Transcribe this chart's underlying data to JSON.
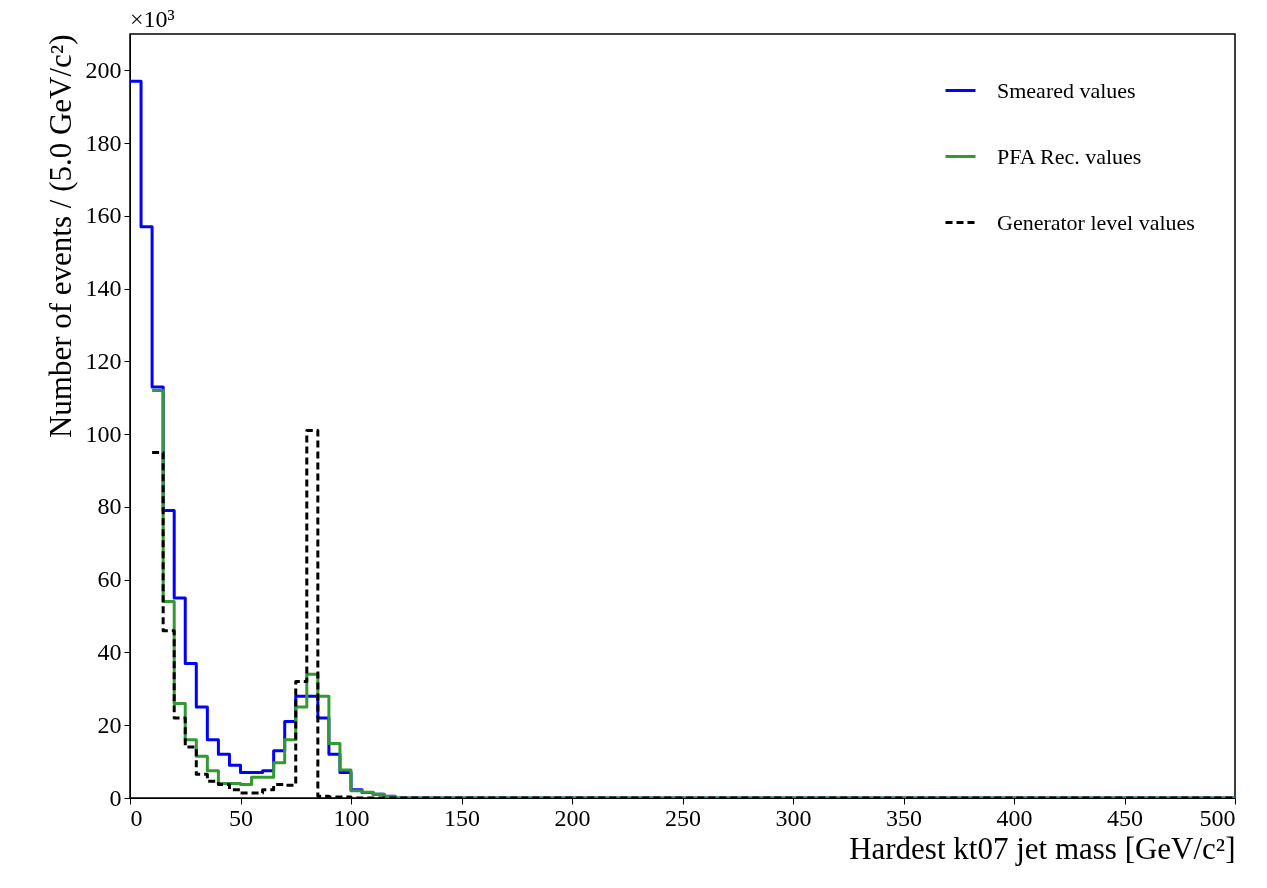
{
  "chart_data": {
    "type": "histogram",
    "xlabel": "Hardest kt07 jet mass [GeV/c²]",
    "ylabel": "Number of events / (5.0 GeV/c²)",
    "annotations": [
      "×10³"
    ],
    "bins": [
      0,
      5,
      10,
      15,
      20,
      25,
      30,
      35,
      40,
      45,
      50,
      55,
      60,
      65,
      70,
      75,
      80,
      85,
      90,
      95,
      100,
      105,
      110,
      115,
      120,
      125,
      130,
      135,
      140,
      145,
      150,
      155,
      160,
      165,
      170,
      175,
      180,
      185,
      190,
      195,
      200,
      205,
      210,
      215,
      220,
      225,
      230,
      235,
      240,
      245,
      250,
      255,
      260,
      265,
      270,
      275,
      280,
      285,
      290,
      295,
      300,
      305,
      310,
      315,
      320,
      325,
      330,
      335,
      340,
      345,
      350,
      355,
      360,
      365,
      370,
      375,
      380,
      385,
      390,
      395,
      400,
      405,
      410,
      415,
      420,
      425,
      430,
      435,
      440,
      445,
      450,
      455,
      460,
      465,
      470,
      475,
      480,
      485,
      490,
      495,
      500
    ],
    "series": [
      {
        "name": "Smeared values",
        "color": "#0000ff",
        "line_style": "solid",
        "values": [
          197,
          157,
          113,
          79,
          55,
          37,
          25,
          16,
          12,
          9,
          7,
          7,
          7.5,
          13,
          21,
          28,
          28,
          22,
          12,
          7,
          2.3,
          1.5,
          1,
          0.5,
          0,
          0,
          0,
          0,
          0,
          0,
          0,
          0,
          0,
          0,
          0,
          0,
          0,
          0,
          0,
          0,
          0,
          0,
          0,
          0,
          0,
          0,
          0,
          0,
          0,
          0,
          0,
          0,
          0,
          0,
          0,
          0,
          0,
          0,
          0,
          0,
          0,
          0,
          0,
          0,
          0,
          0,
          0,
          0,
          0,
          0,
          0,
          0,
          0,
          0,
          0,
          0,
          0,
          0,
          0,
          0,
          0,
          0,
          0,
          0,
          0,
          0,
          0,
          0,
          0,
          0,
          0,
          0,
          0,
          0,
          0,
          0,
          0,
          0,
          0,
          0
        ]
      },
      {
        "name": "PFA Rec. values",
        "color": "#339933",
        "line_style": "solid",
        "bins": [
          10,
          15,
          20,
          25,
          30,
          35,
          40,
          45,
          50,
          55,
          60,
          65,
          70,
          75,
          80,
          85,
          90,
          95,
          100,
          105,
          110,
          115,
          120,
          125,
          130,
          135,
          140,
          145,
          150,
          155,
          160,
          165,
          170,
          175,
          180,
          185,
          190,
          195,
          200,
          205,
          210,
          215,
          220,
          225,
          230,
          235,
          240,
          245,
          250,
          255,
          260,
          265,
          270,
          275,
          280,
          285,
          290,
          295,
          300,
          305,
          310,
          315,
          320,
          325,
          330,
          335,
          340,
          345,
          350,
          355,
          360,
          365,
          370,
          375,
          380,
          385,
          390,
          395,
          400,
          405,
          410,
          415,
          420,
          425,
          430,
          435,
          440,
          445,
          450,
          455,
          460,
          465,
          470,
          475,
          480,
          485,
          490,
          495,
          500
        ],
        "values": [
          112,
          54,
          26,
          16,
          11.5,
          7.5,
          4,
          4,
          3.7,
          5.7,
          5.7,
          9.7,
          16,
          25,
          34,
          28,
          15,
          7.7,
          2,
          1.6,
          1,
          0.4,
          0,
          0,
          0,
          0,
          0,
          0,
          0,
          0,
          0,
          0,
          0,
          0,
          0,
          0,
          0,
          0,
          0,
          0,
          0,
          0,
          0,
          0,
          0,
          0,
          0,
          0,
          0,
          0,
          0,
          0,
          0,
          0,
          0,
          0,
          0,
          0,
          0,
          0,
          0,
          0,
          0,
          0,
          0,
          0,
          0,
          0,
          0,
          0,
          0,
          0,
          0,
          0,
          0,
          0,
          0,
          0,
          0,
          0,
          0,
          0,
          0,
          0,
          0,
          0,
          0,
          0,
          0,
          0,
          0,
          0,
          0,
          0,
          0,
          0,
          0,
          0
        ]
      },
      {
        "name": "Generator level values",
        "color": "#000000",
        "line_style": "dashed",
        "bins": [
          10,
          15,
          20,
          25,
          30,
          35,
          40,
          45,
          50,
          55,
          60,
          65,
          70,
          75,
          80,
          85,
          90,
          95,
          100,
          105,
          110,
          115,
          120,
          125,
          130,
          135,
          140,
          145,
          150,
          155,
          160,
          165,
          170,
          175,
          180,
          185,
          190,
          195,
          200,
          205,
          210,
          215,
          220,
          225,
          230,
          235,
          240,
          245,
          250,
          255,
          260,
          265,
          270,
          275,
          280,
          285,
          290,
          295,
          300,
          305,
          310,
          315,
          320,
          325,
          330,
          335,
          340,
          345,
          350,
          355,
          360,
          365,
          370,
          375,
          380,
          385,
          390,
          395,
          400,
          405,
          410,
          415,
          420,
          425,
          430,
          435,
          440,
          445,
          450,
          455,
          460,
          465,
          470,
          475,
          480,
          485,
          490,
          495,
          500
        ],
        "values": [
          95,
          46,
          22,
          14,
          6.5,
          4.6,
          3.7,
          2.3,
          1.4,
          1.4,
          2.3,
          3.7,
          3.5,
          32,
          101,
          0.5,
          0.3,
          0.3,
          0,
          0,
          0,
          0,
          0,
          0,
          0,
          0,
          0,
          0,
          0,
          0,
          0,
          0,
          0,
          0,
          0,
          0,
          0,
          0,
          0,
          0,
          0,
          0,
          0,
          0,
          0,
          0,
          0,
          0,
          0,
          0,
          0,
          0,
          0,
          0,
          0,
          0,
          0,
          0,
          0,
          0,
          0,
          0,
          0,
          0,
          0,
          0,
          0,
          0,
          0,
          0,
          0,
          0,
          0,
          0,
          0,
          0,
          0,
          0,
          0,
          0,
          0,
          0,
          0,
          0,
          0,
          0,
          0,
          0,
          0,
          0,
          0,
          0,
          0,
          0,
          0,
          0,
          0,
          0
        ]
      }
    ],
    "xlim": [
      0,
      500
    ],
    "xticks": [
      0,
      50,
      100,
      150,
      200,
      250,
      300,
      350,
      400,
      450,
      500
    ],
    "ylim": [
      0,
      210
    ],
    "yticks": [
      0,
      20,
      40,
      60,
      80,
      100,
      120,
      140,
      160,
      180,
      200
    ],
    "legend": "top right",
    "grid": false
  }
}
